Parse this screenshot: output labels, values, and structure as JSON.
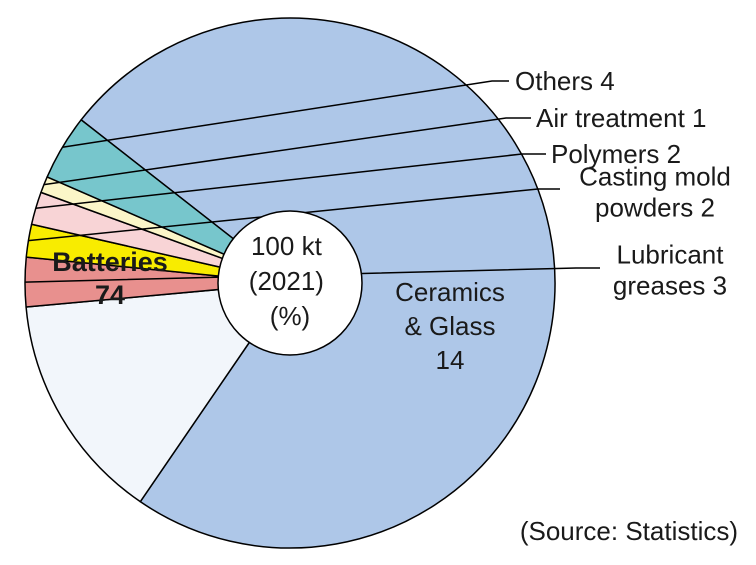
{
  "chart_data": {
    "type": "pie",
    "center_label": [
      "100 kt",
      "(2021)",
      "(%)"
    ],
    "source": "(Source: Statistics)",
    "slices": [
      {
        "name": "Batteries",
        "value": 74,
        "color": "#aec7e8",
        "label_lines": [
          "Batteries",
          "74"
        ],
        "bold": true
      },
      {
        "name": "Ceramics & Glass",
        "value": 14,
        "color": "#f2f6fb",
        "label_lines": [
          "Ceramics",
          "& Glass",
          "14"
        ]
      },
      {
        "name": "Lubricant greases",
        "value": 3,
        "color": "#e8908e",
        "label_lines": [
          "Lubricant",
          "greases 3"
        ]
      },
      {
        "name": "Casting mold powders",
        "value": 2,
        "color": "#f8ec00",
        "label_lines": [
          "Casting mold",
          "powders 2"
        ]
      },
      {
        "name": "Polymers",
        "value": 2,
        "color": "#f8d4d6",
        "label_lines": [
          "Polymers 2"
        ]
      },
      {
        "name": "Air treatment",
        "value": 1,
        "color": "#fbf6c8",
        "label_lines": [
          "Air treatment 1"
        ]
      },
      {
        "name": "Others",
        "value": 4,
        "color": "#77c6cc",
        "label_lines": [
          "Others 4"
        ]
      }
    ]
  }
}
